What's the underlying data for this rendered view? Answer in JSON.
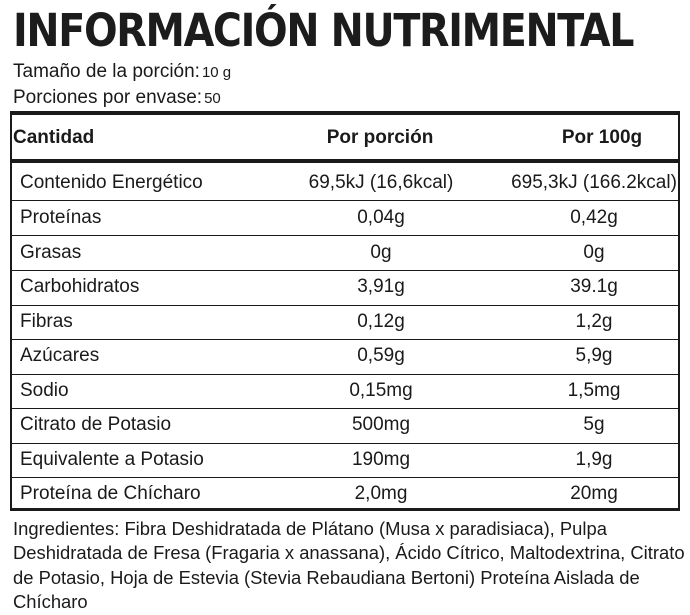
{
  "label": {
    "title": "INFORMACIÓN NUTRIMENTAL",
    "serving_size_label": "Tamaño de la porción:",
    "serving_size_value": "10 g",
    "servings_label": "Porciones por envase:",
    "servings_value": "50",
    "headers": {
      "quantity": "Cantidad",
      "per_serving": "Por porción",
      "per_100g": "Por 100g"
    },
    "rows": [
      {
        "name": "Contenido Energético",
        "per_serving": "69,5kJ (16,6kcal)",
        "per_100g": "695,3kJ (166.2kcal)"
      },
      {
        "name": "Proteínas",
        "per_serving": "0,04g",
        "per_100g": "0,42g"
      },
      {
        "name": "Grasas",
        "per_serving": "0g",
        "per_100g": "0g"
      },
      {
        "name": "Carbohidratos",
        "per_serving": "3,91g",
        "per_100g": "39.1g"
      },
      {
        "name": "Fibras",
        "per_serving": "0,12g",
        "per_100g": "1,2g"
      },
      {
        "name": "Azúcares",
        "per_serving": "0,59g",
        "per_100g": "5,9g"
      },
      {
        "name": "Sodio",
        "per_serving": "0,15mg",
        "per_100g": "1,5mg"
      },
      {
        "name": "Citrato de Potasio",
        "per_serving": "500mg",
        "per_100g": "5g"
      },
      {
        "name": "Equivalente a Potasio",
        "per_serving": "190mg",
        "per_100g": "1,9g"
      },
      {
        "name": "Proteína de Chícharo",
        "per_serving": "2,0mg",
        "per_100g": "20mg"
      }
    ],
    "ingredients": "Ingredientes: Fibra Deshidratada de Plátano (Musa x paradisiaca), Pulpa Deshidratada de Fresa (Fragaria x anassana), Ácido Cítrico, Maltodextrina, Citrato de Potasio, Hoja de Estevia (Stevia Rebaudiana Bertoni) Proteína Aislada de Chícharo"
  }
}
